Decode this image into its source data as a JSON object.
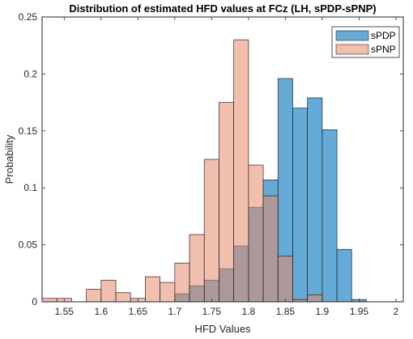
{
  "chart_data": {
    "type": "bar",
    "title": "Distribution of estimated HFD values at FCz (LH, sPDP-sPNP)",
    "xlabel": "HFD Values",
    "ylabel": "Probability",
    "xlim": [
      1.52,
      2.01
    ],
    "ylim": [
      0,
      0.25
    ],
    "xticks": [
      1.55,
      1.6,
      1.65,
      1.7,
      1.75,
      1.8,
      1.85,
      1.9,
      1.95,
      2
    ],
    "xtick_labels": [
      "1.55",
      "1.6",
      "1.65",
      "1.7",
      "1.75",
      "1.8",
      "1.85",
      "1.9",
      "1.95",
      "2"
    ],
    "yticks": [
      0,
      0.05,
      0.1,
      0.15,
      0.2,
      0.25
    ],
    "ytick_labels": [
      "0",
      "0.05",
      "0.1",
      "0.15",
      "0.2",
      "0.25"
    ],
    "bin_width": 0.02,
    "bin_edges": [
      1.52,
      1.54,
      1.56,
      1.58,
      1.6,
      1.62,
      1.64,
      1.66,
      1.68,
      1.7,
      1.72,
      1.74,
      1.76,
      1.78,
      1.8,
      1.82,
      1.84,
      1.86,
      1.88,
      1.9,
      1.92,
      1.94,
      1.96,
      1.98,
      2.0
    ],
    "grid": false,
    "legend_position": "top-right",
    "series": [
      {
        "name": "sPDP",
        "color": "#0072BD",
        "values": [
          0,
          0,
          0,
          0,
          0,
          0,
          0,
          0,
          0,
          0.007,
          0.014,
          0.019,
          0.029,
          0.049,
          0.083,
          0.107,
          0.196,
          0.17,
          0.179,
          0.151,
          0.046,
          0.002,
          0,
          0
        ]
      },
      {
        "name": "sPNP",
        "color": "#E8896A",
        "values": [
          0.003,
          0.003,
          0,
          0.011,
          0.019,
          0.008,
          0.003,
          0.022,
          0.017,
          0.034,
          0.059,
          0.125,
          0.175,
          0.23,
          0.12,
          0.093,
          0.04,
          0.002,
          0.006,
          0,
          0,
          0,
          0,
          0
        ]
      }
    ]
  }
}
